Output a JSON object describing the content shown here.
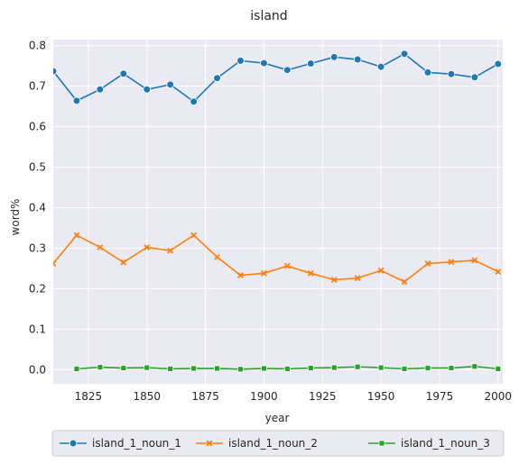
{
  "chart_data": {
    "type": "line",
    "title": "island",
    "xlabel": "year",
    "ylabel": "word%",
    "xlim": [
      1810,
      2002
    ],
    "ylim": [
      -0.035,
      0.815
    ],
    "x_ticks": [
      1825,
      1850,
      1875,
      1900,
      1925,
      1950,
      1975,
      2000
    ],
    "y_ticks": [
      0.0,
      0.1,
      0.2,
      0.3,
      0.4,
      0.5,
      0.6,
      0.7,
      0.8
    ],
    "y_tick_labels": [
      "0.0",
      "0.1",
      "0.2",
      "0.3",
      "0.4",
      "0.5",
      "0.6",
      "0.7",
      "0.8"
    ],
    "grid": true,
    "legend_position": "bottom-center",
    "series": [
      {
        "name": "island_1_noun_1",
        "color": "#1f77b4",
        "marker": "circle",
        "points": [
          [
            1810,
            0.737
          ],
          [
            1820,
            0.664
          ],
          [
            1830,
            0.692
          ],
          [
            1840,
            0.731
          ],
          [
            1850,
            0.692
          ],
          [
            1860,
            0.704
          ],
          [
            1870,
            0.662
          ],
          [
            1880,
            0.72
          ],
          [
            1890,
            0.763
          ],
          [
            1900,
            0.757
          ],
          [
            1910,
            0.74
          ],
          [
            1920,
            0.756
          ],
          [
            1930,
            0.772
          ],
          [
            1940,
            0.766
          ],
          [
            1950,
            0.748
          ],
          [
            1960,
            0.78
          ],
          [
            1970,
            0.734
          ],
          [
            1980,
            0.73
          ],
          [
            1990,
            0.722
          ],
          [
            2000,
            0.755
          ]
        ]
      },
      {
        "name": "island_1_noun_2",
        "color": "#ff7f0e",
        "marker": "x",
        "points": [
          [
            1810,
            0.262
          ],
          [
            1820,
            0.332
          ],
          [
            1830,
            0.302
          ],
          [
            1840,
            0.265
          ],
          [
            1850,
            0.302
          ],
          [
            1860,
            0.294
          ],
          [
            1870,
            0.332
          ],
          [
            1880,
            0.278
          ],
          [
            1890,
            0.233
          ],
          [
            1900,
            0.238
          ],
          [
            1910,
            0.256
          ],
          [
            1920,
            0.238
          ],
          [
            1930,
            0.222
          ],
          [
            1940,
            0.226
          ],
          [
            1950,
            0.245
          ],
          [
            1960,
            0.217
          ],
          [
            1970,
            0.262
          ],
          [
            1980,
            0.266
          ],
          [
            1990,
            0.27
          ],
          [
            2000,
            0.242
          ]
        ]
      },
      {
        "name": "island_1_noun_3",
        "color": "#2ca02c",
        "marker": "square",
        "points": [
          [
            1820,
            0.002
          ],
          [
            1830,
            0.006
          ],
          [
            1840,
            0.004
          ],
          [
            1850,
            0.005
          ],
          [
            1860,
            0.002
          ],
          [
            1870,
            0.003
          ],
          [
            1880,
            0.003
          ],
          [
            1890,
            0.001
          ],
          [
            1900,
            0.003
          ],
          [
            1910,
            0.002
          ],
          [
            1920,
            0.004
          ],
          [
            1930,
            0.005
          ],
          [
            1940,
            0.007
          ],
          [
            1950,
            0.005
          ],
          [
            1960,
            0.002
          ],
          [
            1970,
            0.004
          ],
          [
            1980,
            0.004
          ],
          [
            1990,
            0.008
          ],
          [
            2000,
            0.002
          ]
        ]
      }
    ]
  }
}
